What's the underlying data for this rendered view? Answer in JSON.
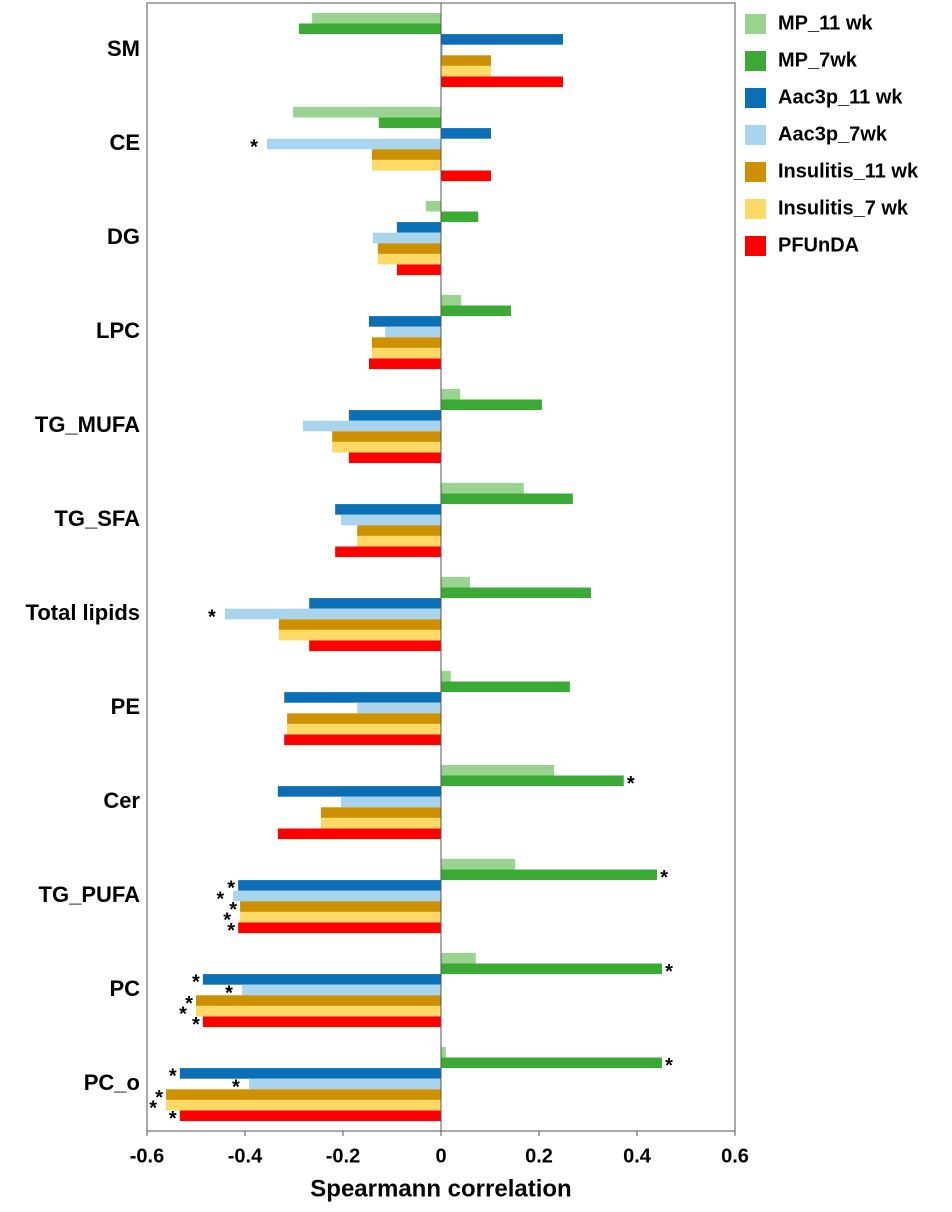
{
  "chart_data": {
    "type": "hbar",
    "x_label": "Spearmann correlation",
    "categories": [
      "SM",
      "CE",
      "DG",
      "LPC",
      "TG_MUFA",
      "TG_SFA",
      "Total lipids",
      "PE",
      "Cer",
      "TG_PUFA",
      "PC",
      "PC_o"
    ],
    "series": [
      {
        "name": "MP_11 wk",
        "color": "#98d48f",
        "values": [
          -0.263,
          -0.302,
          -0.031,
          0.041,
          0.039,
          0.169,
          0.059,
          0.02,
          0.231,
          0.151,
          0.071,
          0.01
        ],
        "significance": [
          null,
          null,
          null,
          null,
          null,
          null,
          null,
          null,
          null,
          null,
          null,
          null
        ]
      },
      {
        "name": "MP_7wk",
        "color": "#3aaa35",
        "values": [
          -0.29,
          -0.127,
          0.076,
          0.143,
          0.206,
          0.269,
          0.306,
          0.263,
          0.373,
          0.441,
          0.451,
          0.451
        ],
        "significance": [
          null,
          null,
          null,
          null,
          null,
          null,
          null,
          null,
          "*",
          "*",
          "*",
          "*"
        ]
      },
      {
        "name": "Aac3p_11 wk",
        "color": "#0a6fb5",
        "values": [
          0.249,
          0.102,
          -0.09,
          -0.147,
          -0.188,
          -0.216,
          -0.269,
          -0.32,
          -0.333,
          -0.414,
          -0.486,
          -0.533
        ],
        "significance": [
          null,
          null,
          null,
          null,
          null,
          null,
          null,
          null,
          null,
          "*",
          "*",
          "*"
        ]
      },
      {
        "name": "Aac3p_7wk",
        "color": "#a8d4ee",
        "values": [
          0.004,
          -0.355,
          -0.139,
          -0.114,
          -0.282,
          -0.204,
          -0.441,
          -0.171,
          -0.204,
          -0.424,
          -0.406,
          -0.392
        ],
        "significance": [
          null,
          "*",
          null,
          null,
          null,
          null,
          "*",
          null,
          null,
          "*",
          "*",
          "*"
        ]
      },
      {
        "name": "Insulitis_11 wk",
        "color": "#cc9000",
        "values": [
          0.102,
          -0.141,
          -0.129,
          -0.141,
          -0.222,
          -0.171,
          -0.331,
          -0.314,
          -0.245,
          -0.41,
          -0.5,
          -0.561
        ],
        "significance": [
          null,
          null,
          null,
          null,
          null,
          null,
          null,
          null,
          null,
          "*",
          "*",
          "*"
        ]
      },
      {
        "name": "Insulitis_7 wk",
        "color": "#ffd966",
        "values": [
          0.102,
          -0.141,
          -0.129,
          -0.141,
          -0.222,
          -0.171,
          -0.331,
          -0.314,
          -0.245,
          -0.41,
          -0.5,
          -0.561
        ],
        "significance": [
          null,
          null,
          null,
          null,
          null,
          null,
          null,
          null,
          null,
          "*",
          "*",
          "*"
        ]
      },
      {
        "name": "PFUnDA",
        "color": "#ff0000",
        "values": [
          0.249,
          0.102,
          -0.09,
          -0.147,
          -0.188,
          -0.216,
          -0.269,
          -0.32,
          -0.333,
          -0.414,
          -0.486,
          -0.533
        ],
        "significance": [
          null,
          null,
          null,
          null,
          null,
          null,
          null,
          null,
          null,
          "*",
          "*",
          "*"
        ]
      }
    ],
    "xlim": [
      -0.6,
      0.6
    ],
    "xticks": [
      -0.6,
      -0.4,
      -0.2,
      0,
      0.2,
      0.4,
      0.6
    ],
    "legend": "right"
  }
}
